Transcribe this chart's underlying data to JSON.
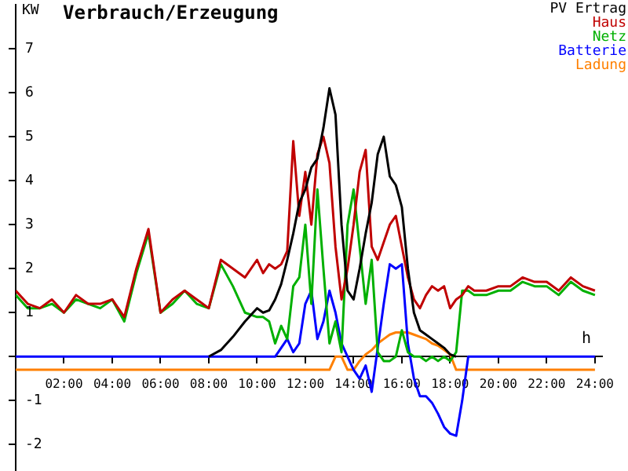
{
  "chart_data": {
    "type": "line",
    "title": "Verbrauch/Erzeugung",
    "xlabel": "h",
    "ylabel": "KW",
    "x": [
      0,
      0.5,
      1,
      1.5,
      2,
      2.5,
      3,
      3.5,
      4,
      4.5,
      5,
      5.5,
      6,
      6.5,
      7,
      7.5,
      8,
      8.5,
      9,
      9.5,
      10,
      10.25,
      10.5,
      10.75,
      11,
      11.25,
      11.5,
      11.75,
      12,
      12.25,
      12.5,
      12.75,
      13,
      13.25,
      13.5,
      13.75,
      14,
      14.25,
      14.5,
      14.75,
      15,
      15.25,
      15.5,
      15.75,
      16,
      16.25,
      16.5,
      16.75,
      17,
      17.25,
      17.5,
      17.75,
      18,
      18.25,
      18.5,
      18.75,
      19,
      19.5,
      20,
      20.5,
      21,
      21.5,
      22,
      22.5,
      23,
      23.5,
      24
    ],
    "series": [
      {
        "name": "PV Ertrag",
        "color": "#000000",
        "values": [
          null,
          null,
          null,
          null,
          null,
          null,
          null,
          null,
          null,
          null,
          null,
          null,
          null,
          null,
          null,
          null,
          0,
          0.15,
          0.45,
          0.8,
          1.1,
          1.0,
          1.05,
          1.3,
          1.65,
          2.2,
          2.8,
          3.5,
          3.8,
          4.3,
          4.5,
          5.2,
          6.1,
          5.5,
          3.0,
          1.5,
          1.3,
          2.0,
          2.8,
          3.5,
          4.6,
          5.0,
          4.1,
          3.9,
          3.4,
          2.0,
          1.0,
          0.6,
          0.5,
          0.4,
          0.3,
          0.2,
          0.05,
          0,
          null,
          null,
          null,
          null,
          null,
          null,
          null,
          null,
          null,
          null,
          null,
          null,
          null
        ]
      },
      {
        "name": "Haus",
        "color": "#c00000",
        "values": [
          1.5,
          1.2,
          1.1,
          1.3,
          1.0,
          1.4,
          1.2,
          1.2,
          1.3,
          0.9,
          2.0,
          2.9,
          1.0,
          1.3,
          1.5,
          1.3,
          1.1,
          2.2,
          2.0,
          1.8,
          2.2,
          1.9,
          2.1,
          2.0,
          2.1,
          2.4,
          4.9,
          3.2,
          4.2,
          3.0,
          4.6,
          5.0,
          4.4,
          2.5,
          1.3,
          2.0,
          3.0,
          4.2,
          4.7,
          2.5,
          2.2,
          2.6,
          3.0,
          3.2,
          2.5,
          1.8,
          1.3,
          1.1,
          1.4,
          1.6,
          1.5,
          1.6,
          1.1,
          1.3,
          1.4,
          1.6,
          1.5,
          1.5,
          1.6,
          1.6,
          1.8,
          1.7,
          1.7,
          1.5,
          1.8,
          1.6,
          1.5
        ]
      },
      {
        "name": "Netz",
        "color": "#00b000",
        "values": [
          1.4,
          1.1,
          1.1,
          1.2,
          1.0,
          1.3,
          1.2,
          1.1,
          1.3,
          0.8,
          1.9,
          2.8,
          1.0,
          1.2,
          1.5,
          1.2,
          1.1,
          2.1,
          1.6,
          1.0,
          0.9,
          0.9,
          0.8,
          0.3,
          0.7,
          0.4,
          1.6,
          1.8,
          3.0,
          1.2,
          3.8,
          2.0,
          0.3,
          0.8,
          0.1,
          3.0,
          3.8,
          2.5,
          1.2,
          2.2,
          0.1,
          -0.1,
          -0.1,
          0,
          0.6,
          0.1,
          0,
          0,
          -0.1,
          0,
          -0.1,
          0,
          -0.1,
          0.1,
          1.5,
          1.5,
          1.4,
          1.4,
          1.5,
          1.5,
          1.7,
          1.6,
          1.6,
          1.4,
          1.7,
          1.5,
          1.4
        ]
      },
      {
        "name": "Batterie",
        "color": "#0000ff",
        "values": [
          0,
          0,
          0,
          0,
          0,
          0,
          0,
          0,
          0,
          0,
          0,
          0,
          0,
          0,
          0,
          0,
          0,
          0,
          0,
          0,
          0,
          0,
          0,
          0,
          0.2,
          0.4,
          0.1,
          0.3,
          1.2,
          1.5,
          0.4,
          0.8,
          1.5,
          1.0,
          0.3,
          0,
          -0.3,
          -0.5,
          -0.2,
          -0.8,
          0.2,
          1.2,
          2.1,
          2.0,
          2.1,
          0.3,
          -0.5,
          -0.9,
          -0.9,
          -1.05,
          -1.3,
          -1.6,
          -1.75,
          -1.8,
          -1.0,
          0,
          0,
          0,
          0,
          0,
          0,
          0,
          0,
          0,
          0,
          0,
          0
        ]
      },
      {
        "name": "Ladung",
        "color": "#ff8000",
        "values": [
          -0.3,
          -0.3,
          -0.3,
          -0.3,
          -0.3,
          -0.3,
          -0.3,
          -0.3,
          -0.3,
          -0.3,
          -0.3,
          -0.3,
          -0.3,
          -0.3,
          -0.3,
          -0.3,
          -0.3,
          -0.3,
          -0.3,
          -0.3,
          -0.3,
          -0.3,
          -0.3,
          -0.3,
          -0.3,
          -0.3,
          -0.3,
          -0.3,
          -0.3,
          -0.3,
          -0.3,
          -0.3,
          -0.3,
          0,
          0,
          -0.3,
          -0.3,
          -0.1,
          0.05,
          0.15,
          0.3,
          0.4,
          0.5,
          0.55,
          0.55,
          0.55,
          0.5,
          0.45,
          0.4,
          0.3,
          0.25,
          0.15,
          0.05,
          -0.3,
          -0.3,
          -0.3,
          -0.3,
          -0.3,
          -0.3,
          -0.3,
          -0.3,
          -0.3,
          -0.3,
          -0.3,
          -0.3,
          -0.3,
          -0.3
        ]
      }
    ],
    "xlim": [
      0,
      24.3
    ],
    "ylim": [
      -2.6,
      8
    ],
    "xticks": [
      {
        "value": 2,
        "label": "02:00"
      },
      {
        "value": 4,
        "label": "04:00"
      },
      {
        "value": 6,
        "label": "06:00"
      },
      {
        "value": 8,
        "label": "08:00"
      },
      {
        "value": 10,
        "label": "10:00"
      },
      {
        "value": 12,
        "label": "12:00"
      },
      {
        "value": 14,
        "label": "14:00"
      },
      {
        "value": 16,
        "label": "16:00"
      },
      {
        "value": 18,
        "label": "18:00"
      },
      {
        "value": 20,
        "label": "20:00"
      },
      {
        "value": 22,
        "label": "22:00"
      },
      {
        "value": 24,
        "label": "24:00"
      }
    ],
    "yticks": [
      -2,
      -1,
      {
        "value": 0,
        "label": null
      },
      1,
      2,
      3,
      4,
      5,
      6,
      7
    ],
    "grid": false,
    "legend": "top right",
    "marker": "none",
    "line_style": "solid"
  }
}
